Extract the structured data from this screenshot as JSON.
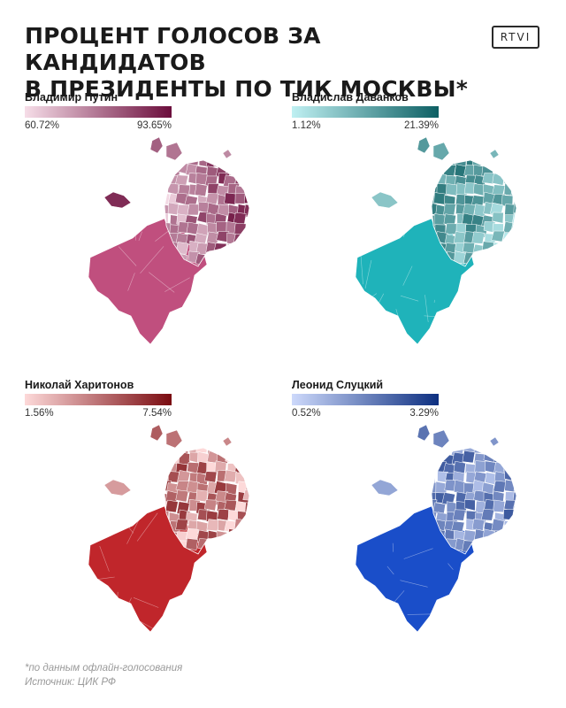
{
  "title": {
    "line1": "ПРОЦЕНТ ГОЛОСОВ ЗА КАНДИДАТОВ",
    "line2": "В ПРЕЗИДЕНТЫ ПО ТИК МОСКВЫ*"
  },
  "logo": "RTVI",
  "panels": [
    {
      "name": "Владимир Путин",
      "min": "60.72%",
      "max": "93.65%",
      "color_light": "#f6dde8",
      "color_dark": "#6b0d3c",
      "color_base": "#c04f7e"
    },
    {
      "name": "Владислав Даванков",
      "min": "1.12%",
      "max": "21.39%",
      "color_light": "#bff0f2",
      "color_dark": "#0d5f63",
      "color_base": "#1fb3ba"
    },
    {
      "name": "Николай Харитонов",
      "min": "1.56%",
      "max": "7.54%",
      "color_light": "#fdd9d9",
      "color_dark": "#7a0b10",
      "color_base": "#c0262b"
    },
    {
      "name": "Леонид Слуцкий",
      "min": "0.52%",
      "max": "3.29%",
      "color_light": "#cdd9fb",
      "color_dark": "#0d2f80",
      "color_base": "#1a4ec9"
    }
  ],
  "footer": {
    "note": "*по данным офлайн-голосования",
    "source": "Источник: ЦИК РФ"
  }
}
